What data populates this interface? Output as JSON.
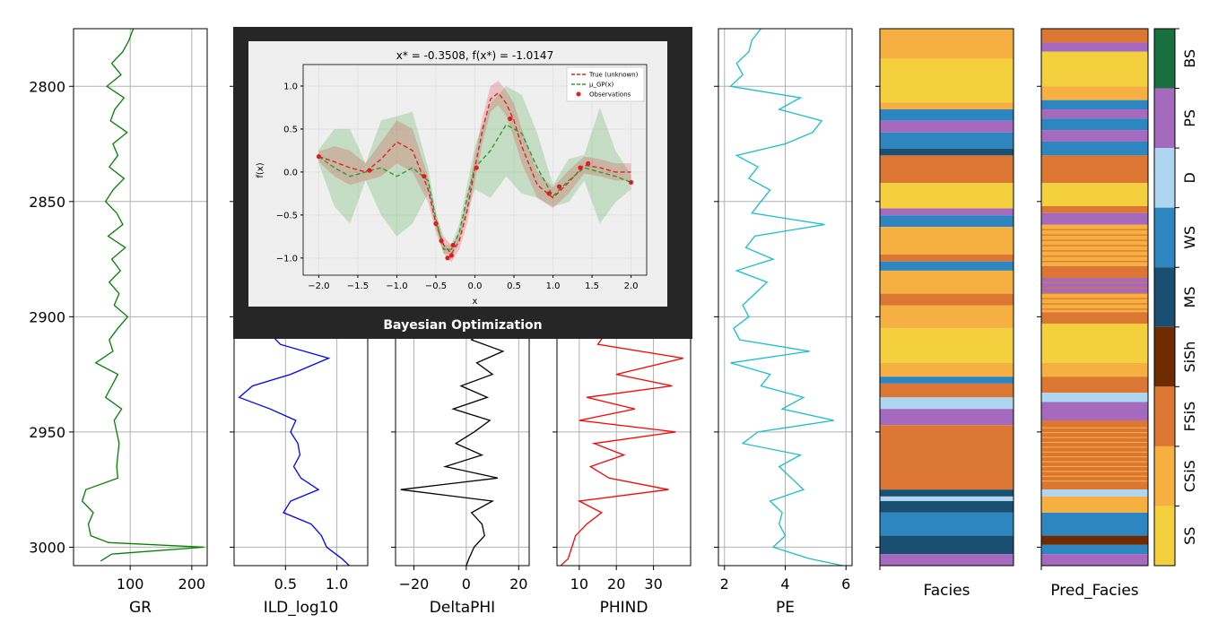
{
  "figure": {
    "depth_ticks": [
      "2800",
      "2850",
      "2900",
      "2950",
      "3000"
    ],
    "depth_tick_values": [
      2800,
      2850,
      2900,
      2950,
      3000
    ],
    "depth_range": [
      2775,
      3008
    ]
  },
  "tracks": [
    {
      "id": "gr",
      "xlabel": "GR",
      "color": "#008000",
      "xlim": [
        8,
        225
      ],
      "ticks": [
        100,
        200
      ],
      "tick_labels": [
        "100",
        "200"
      ],
      "profile_depth": [
        2775,
        2780,
        2785,
        2790,
        2795,
        2800,
        2805,
        2810,
        2815,
        2820,
        2825,
        2830,
        2835,
        2840,
        2845,
        2850,
        2855,
        2860,
        2865,
        2870,
        2875,
        2880,
        2885,
        2890,
        2895,
        2900,
        2905,
        2910,
        2915,
        2920,
        2925,
        2930,
        2935,
        2940,
        2945,
        2950,
        2955,
        2960,
        2965,
        2970,
        2975,
        2980,
        2985,
        2990,
        2995,
        2998,
        3000,
        3003,
        3006
      ],
      "profile_value": [
        105,
        98,
        88,
        70,
        85,
        62,
        90,
        75,
        68,
        95,
        72,
        80,
        66,
        90,
        72,
        60,
        78,
        88,
        64,
        92,
        70,
        84,
        66,
        82,
        74,
        96,
        80,
        66,
        72,
        44,
        80,
        70,
        60,
        86,
        74,
        78,
        82,
        80,
        78,
        80,
        28,
        22,
        40,
        32,
        36,
        65,
        220,
        70,
        52
      ]
    },
    {
      "id": "ild",
      "xlabel": "ILD_log10",
      "color": "#0000ff",
      "xlim": [
        0.0,
        1.3
      ],
      "ticks": [
        0.5,
        1.0
      ],
      "tick_labels": [
        "0.5",
        "1.0"
      ],
      "profile_depth": [
        2905,
        2912,
        2918,
        2925,
        2930,
        2935,
        2940,
        2945,
        2950,
        2955,
        2960,
        2965,
        2970,
        2975,
        2980,
        2985,
        2990,
        2995,
        3000,
        3005,
        3008
      ],
      "profile_value": [
        0.3,
        0.45,
        0.92,
        0.55,
        0.18,
        0.05,
        0.35,
        0.6,
        0.55,
        0.62,
        0.64,
        0.58,
        0.65,
        0.82,
        0.55,
        0.48,
        0.75,
        0.85,
        0.9,
        1.05,
        1.12
      ]
    },
    {
      "id": "dphi",
      "xlabel": "DeltaPHI",
      "color": "#000000",
      "xlim": [
        -27,
        24
      ],
      "ticks": [
        -20,
        0,
        20
      ],
      "tick_labels": [
        "−20",
        "0",
        "20"
      ],
      "profile_depth": [
        2905,
        2910,
        2915,
        2920,
        2925,
        2930,
        2935,
        2940,
        2945,
        2950,
        2955,
        2960,
        2965,
        2970,
        2975,
        2980,
        2985,
        2990,
        2995,
        3000,
        3005,
        3008
      ],
      "profile_value": [
        8,
        2,
        14,
        4,
        10,
        -2,
        8,
        -5,
        9,
        3,
        -4,
        6,
        -8,
        12,
        -25,
        10,
        2,
        6,
        7,
        3,
        1,
        0
      ]
    },
    {
      "id": "phind",
      "xlabel": "PHIND",
      "color": "#ff0000",
      "xlim": [
        4,
        40
      ],
      "ticks": [
        10,
        20,
        30
      ],
      "tick_labels": [
        "10",
        "20",
        "30"
      ],
      "profile_depth": [
        2905,
        2912,
        2918,
        2925,
        2930,
        2935,
        2940,
        2945,
        2950,
        2955,
        2960,
        2965,
        2970,
        2975,
        2980,
        2985,
        2990,
        2995,
        3000,
        3005,
        3008
      ],
      "profile_value": [
        18,
        15,
        38,
        20,
        35,
        12,
        25,
        10,
        36,
        14,
        22,
        13,
        18,
        34,
        10,
        16,
        12,
        9,
        8,
        7,
        5
      ]
    },
    {
      "id": "pe",
      "xlabel": "PE",
      "color": "#17becf",
      "xlim": [
        1.8,
        6.2
      ],
      "ticks": [
        2,
        4,
        6
      ],
      "tick_labels": [
        "2",
        "4",
        "6"
      ],
      "profile_depth": [
        2775,
        2780,
        2785,
        2790,
        2795,
        2800,
        2805,
        2810,
        2815,
        2820,
        2825,
        2830,
        2835,
        2840,
        2845,
        2850,
        2855,
        2860,
        2865,
        2870,
        2875,
        2880,
        2885,
        2890,
        2895,
        2900,
        2905,
        2910,
        2915,
        2920,
        2925,
        2930,
        2935,
        2940,
        2945,
        2950,
        2955,
        2960,
        2965,
        2970,
        2975,
        2980,
        2985,
        2990,
        2995,
        3000,
        3005,
        3008
      ],
      "profile_value": [
        3.2,
        2.9,
        2.8,
        2.4,
        2.6,
        2.2,
        4.5,
        3.8,
        5.2,
        4.9,
        4.0,
        2.4,
        3.1,
        2.8,
        3.5,
        3.2,
        2.9,
        5.3,
        3.0,
        2.7,
        3.6,
        2.4,
        3.4,
        3.0,
        2.6,
        2.8,
        2.3,
        2.5,
        4.8,
        2.2,
        3.5,
        3.2,
        4.6,
        3.9,
        5.6,
        3.1,
        2.6,
        4.5,
        3.8,
        4.2,
        4.6,
        3.5,
        3.9,
        3.8,
        4.0,
        3.6,
        4.8,
        5.9
      ]
    }
  ],
  "facies_tracks": [
    {
      "id": "facies",
      "xlabel": "Facies",
      "layers": [
        [
          2775,
          2788,
          "CSiS"
        ],
        [
          2788,
          2807,
          "SS"
        ],
        [
          2807,
          2810,
          "CSiS"
        ],
        [
          2810,
          2815,
          "WS"
        ],
        [
          2815,
          2820,
          "PS"
        ],
        [
          2820,
          2827,
          "WS"
        ],
        [
          2827,
          2830,
          "MS"
        ],
        [
          2830,
          2842,
          "FSiS"
        ],
        [
          2842,
          2853,
          "SS"
        ],
        [
          2853,
          2856,
          "PS"
        ],
        [
          2856,
          2861,
          "WS"
        ],
        [
          2861,
          2873,
          "CSiS"
        ],
        [
          2873,
          2876,
          "FSiS"
        ],
        [
          2876,
          2880,
          "WS"
        ],
        [
          2880,
          2890,
          "CSiS"
        ],
        [
          2890,
          2895,
          "FSiS"
        ],
        [
          2895,
          2905,
          "CSiS"
        ],
        [
          2905,
          2920,
          "SS"
        ],
        [
          2920,
          2926,
          "CSiS"
        ],
        [
          2926,
          2929,
          "WS"
        ],
        [
          2929,
          2935,
          "FSiS"
        ],
        [
          2935,
          2940,
          "D"
        ],
        [
          2940,
          2947,
          "PS"
        ],
        [
          2947,
          2975,
          "FSiS"
        ],
        [
          2975,
          2978,
          "MS"
        ],
        [
          2978,
          2980,
          "D"
        ],
        [
          2980,
          2985,
          "MS"
        ],
        [
          2985,
          2995,
          "WS"
        ],
        [
          2995,
          3003,
          "MS"
        ],
        [
          3003,
          3008,
          "PS"
        ]
      ]
    },
    {
      "id": "pred_facies",
      "xlabel": "Pred_Facies",
      "layers": [
        [
          2775,
          2781,
          "FSiS"
        ],
        [
          2781,
          2785,
          "PS"
        ],
        [
          2785,
          2800,
          "SS"
        ],
        [
          2800,
          2806,
          "CSiS"
        ],
        [
          2806,
          2810,
          "WS"
        ],
        [
          2810,
          2814,
          "PS"
        ],
        [
          2814,
          2819,
          "WS"
        ],
        [
          2819,
          2824,
          "PS"
        ],
        [
          2824,
          2830,
          "WS"
        ],
        [
          2830,
          2842,
          "FSiS"
        ],
        [
          2842,
          2852,
          "SS"
        ],
        [
          2852,
          2855,
          "FSiS"
        ],
        [
          2855,
          2860,
          "PS"
        ],
        [
          2860,
          2878,
          "CSiS"
        ],
        [
          2878,
          2883,
          "FSiS"
        ],
        [
          2883,
          2890,
          "PS"
        ],
        [
          2890,
          2898,
          "CSiS"
        ],
        [
          2898,
          2903,
          "FSiS"
        ],
        [
          2903,
          2920,
          "SS"
        ],
        [
          2920,
          2926,
          "CSiS"
        ],
        [
          2926,
          2933,
          "FSiS"
        ],
        [
          2933,
          2937,
          "D"
        ],
        [
          2937,
          2945,
          "PS"
        ],
        [
          2945,
          2975,
          "FSiS"
        ],
        [
          2975,
          2978,
          "D"
        ],
        [
          2978,
          2985,
          "CSiS"
        ],
        [
          2985,
          2995,
          "WS"
        ],
        [
          2995,
          2999,
          "SiSh"
        ],
        [
          2999,
          3003,
          "WS"
        ],
        [
          3003,
          3008,
          "PS"
        ]
      ]
    }
  ],
  "facies_legend": {
    "labels": [
      "BS",
      "PS",
      "D",
      "WS",
      "MS",
      "SiSh",
      "FSiS",
      "CSiS",
      "SS"
    ],
    "colors": {
      "SS": "#F4D03F",
      "CSiS": "#F5B041",
      "FSiS": "#DC7633",
      "SiSh": "#6E2C00",
      "MS": "#1B4F72",
      "WS": "#2E86C1",
      "D": "#AED6F1",
      "PS": "#A569BD",
      "BS": "#196F3D"
    }
  },
  "overlay": {
    "label": "Bayesian Optimization",
    "chart_data": {
      "type": "line",
      "title": "x* = -0.3508, f(x*) = -1.0147",
      "xlabel": "x",
      "ylabel": "f(x)",
      "xlim": [
        -2.2,
        2.2
      ],
      "ylim": [
        -1.2,
        1.25
      ],
      "xticks": [
        -2.0,
        -1.5,
        -1.0,
        -0.5,
        0.0,
        0.5,
        1.0,
        1.5,
        2.0
      ],
      "xtick_labels": [
        "−2.0",
        "−1.5",
        "−1.0",
        "−0.5",
        "0.0",
        "0.5",
        "1.0",
        "1.5",
        "2.0"
      ],
      "yticks": [
        -1.0,
        -0.5,
        0.0,
        0.5,
        1.0
      ],
      "ytick_labels": [
        "−1.0",
        "−0.5",
        "0.0",
        "0.5",
        "1.0"
      ],
      "grid": true,
      "legend_placement": "top-right",
      "series": [
        {
          "name": "True (unknown)",
          "color": "#d62728",
          "style": "dashed",
          "x": [
            -2.0,
            -1.8,
            -1.6,
            -1.4,
            -1.2,
            -1.0,
            -0.8,
            -0.6,
            -0.5,
            -0.4,
            -0.3,
            -0.2,
            -0.1,
            0.0,
            0.1,
            0.2,
            0.3,
            0.4,
            0.5,
            0.6,
            0.8,
            1.0,
            1.2,
            1.4,
            1.6,
            1.8,
            2.0
          ],
          "y": [
            0.18,
            0.12,
            0.05,
            0.0,
            0.15,
            0.35,
            0.25,
            -0.2,
            -0.6,
            -0.85,
            -0.95,
            -0.8,
            -0.45,
            0.05,
            0.5,
            0.85,
            0.92,
            0.8,
            0.6,
            0.3,
            -0.15,
            -0.3,
            -0.12,
            0.08,
            0.05,
            0.0,
            0.0
          ]
        },
        {
          "name": "μ_GP(x)",
          "color": "#2ca02c",
          "style": "dashed",
          "x": [
            -2.0,
            -1.8,
            -1.6,
            -1.4,
            -1.2,
            -1.0,
            -0.8,
            -0.6,
            -0.5,
            -0.4,
            -0.3,
            -0.2,
            -0.1,
            0.0,
            0.2,
            0.4,
            0.6,
            0.8,
            1.0,
            1.2,
            1.4,
            1.6,
            1.8,
            2.0
          ],
          "y": [
            0.18,
            0.05,
            -0.05,
            0.0,
            0.05,
            -0.05,
            0.05,
            -0.1,
            -0.55,
            -0.9,
            -0.9,
            -0.7,
            -0.3,
            0.05,
            0.25,
            0.55,
            0.45,
            0.05,
            -0.28,
            -0.1,
            0.05,
            0.0,
            -0.05,
            -0.12
          ]
        },
        {
          "name": "Observations",
          "color": "#e41a1c",
          "style": "points",
          "x": [
            -2.0,
            -1.35,
            -0.65,
            -0.5,
            -0.43,
            -0.35,
            -0.3,
            -0.28,
            0.02,
            0.45,
            0.95,
            1.08,
            1.35,
            1.45,
            2.0
          ],
          "y": [
            0.18,
            0.02,
            -0.05,
            -0.6,
            -0.8,
            -1.0,
            -0.97,
            -0.85,
            0.05,
            0.62,
            -0.25,
            -0.17,
            0.05,
            0.1,
            -0.12
          ]
        }
      ],
      "bands": [
        {
          "series": "μ_GP(x)",
          "color": "#2ca02c",
          "x": [
            -2.0,
            -1.8,
            -1.6,
            -1.4,
            -1.2,
            -1.0,
            -0.8,
            -0.6,
            -0.5,
            -0.4,
            -0.3,
            -0.2,
            -0.1,
            0.0,
            0.2,
            0.4,
            0.6,
            0.8,
            1.0,
            1.2,
            1.4,
            1.6,
            1.8,
            2.0
          ],
          "lower": [
            0.1,
            -0.4,
            -0.6,
            -0.1,
            -0.5,
            -0.75,
            -0.6,
            -0.25,
            -0.65,
            -0.95,
            -0.95,
            -0.8,
            -0.45,
            -0.2,
            -0.3,
            -0.05,
            -0.25,
            -0.3,
            -0.4,
            -0.35,
            -0.1,
            -0.6,
            -0.35,
            -0.2
          ],
          "upper": [
            0.26,
            0.5,
            0.5,
            0.1,
            0.6,
            0.65,
            0.7,
            0.05,
            -0.45,
            -0.85,
            -0.85,
            -0.6,
            -0.15,
            0.3,
            0.8,
            1.0,
            0.9,
            0.45,
            -0.15,
            0.15,
            0.2,
            0.75,
            0.25,
            -0.04
          ]
        },
        {
          "series": "True (unknown)",
          "color": "#d62728",
          "x": [
            -2.0,
            -1.8,
            -1.6,
            -1.4,
            -1.2,
            -1.0,
            -0.8,
            -0.6,
            -0.5,
            -0.4,
            -0.3,
            -0.2,
            -0.1,
            0.0,
            0.1,
            0.2,
            0.3,
            0.4,
            0.5,
            0.6,
            0.8,
            1.0,
            1.2,
            1.4,
            1.6,
            1.8,
            2.0
          ],
          "lower": [
            0.12,
            -0.05,
            -0.15,
            -0.1,
            -0.05,
            0.1,
            0.0,
            -0.35,
            -0.7,
            -0.95,
            -1.05,
            -0.9,
            -0.6,
            -0.1,
            0.35,
            0.7,
            0.78,
            0.65,
            0.4,
            0.1,
            -0.3,
            -0.42,
            -0.25,
            -0.02,
            -0.05,
            -0.1,
            -0.1
          ],
          "upper": [
            0.24,
            0.3,
            0.25,
            0.1,
            0.35,
            0.6,
            0.5,
            -0.05,
            -0.5,
            -0.75,
            -0.85,
            -0.7,
            -0.3,
            0.2,
            0.65,
            1.0,
            1.06,
            0.95,
            0.8,
            0.5,
            0.0,
            -0.18,
            0.02,
            0.18,
            0.15,
            0.1,
            0.1
          ]
        }
      ]
    }
  }
}
